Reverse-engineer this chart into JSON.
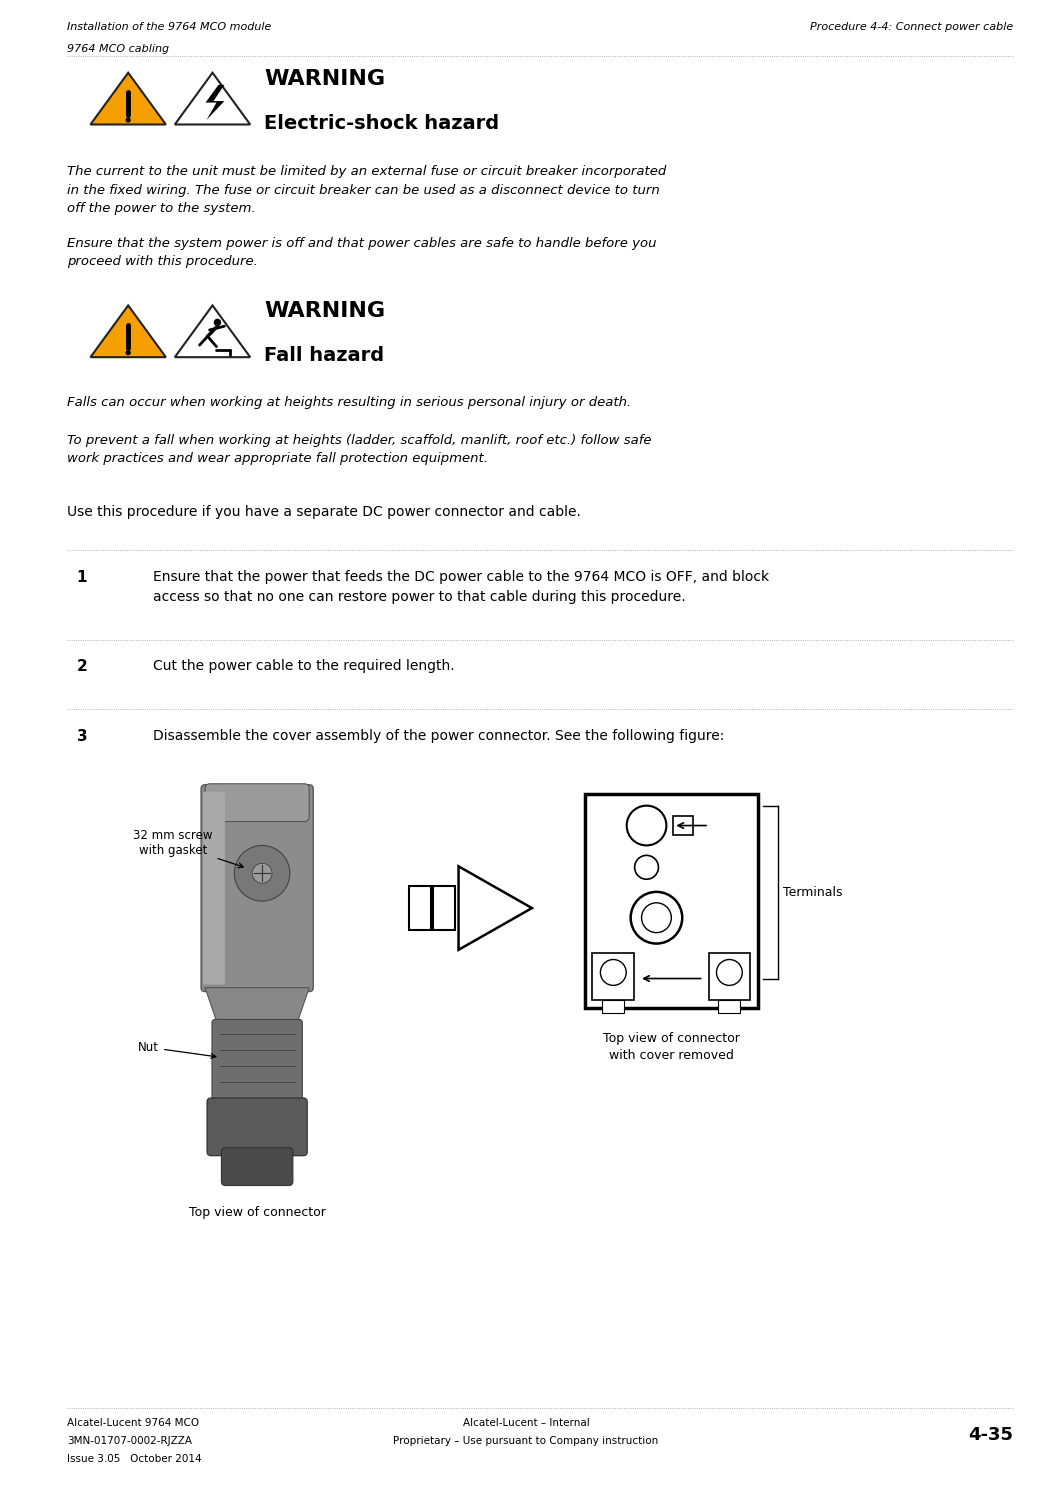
{
  "page_width": 10.52,
  "page_height": 14.87,
  "bg_color": "#ffffff",
  "header_left_line1": "Installation of the 9764 MCO module",
  "header_left_line2": "9764 MCO cabling",
  "header_right": "Procedure 4-4: Connect power cable",
  "warning1_title": "WARNING",
  "warning1_subtitle": "Electric-shock hazard",
  "warning1_body1": "The current to the unit must be limited by an external fuse or circuit breaker incorporated\nin the fixed wiring. The fuse or circuit breaker can be used as a disconnect device to turn\noff the power to the system.",
  "warning1_body2": "Ensure that the system power is off and that power cables are safe to handle before you\nproceed with this procedure.",
  "warning2_title": "WARNING",
  "warning2_subtitle": "Fall hazard",
  "warning2_body1": "Falls can occur when working at heights resulting in serious personal injury or death.",
  "warning2_body2": "To prevent a fall when working at heights (ladder, scaffold, manlift, roof etc.) follow safe\nwork practices and wear appropriate fall protection equipment.",
  "intro_text": "Use this procedure if you have a separate DC power connector and cable.",
  "step1_num": "1",
  "step1_text": "Ensure that the power that feeds the DC power cable to the 9764 MCO is OFF, and block\naccess so that no one can restore power to that cable during this procedure.",
  "step2_num": "2",
  "step2_text": "Cut the power cable to the required length.",
  "step3_num": "3",
  "step3_text": "Disassemble the cover assembly of the power connector. See the following figure:",
  "fig_label1": "32 mm screw\nwith gasket",
  "fig_label2": "Nut",
  "fig_label3": "Top view of connector",
  "fig_label4": "Top view of connector\nwith cover removed",
  "fig_label5": "Terminals",
  "footer_left1": "Alcatel-Lucent 9764 MCO",
  "footer_left2": "3MN-01707-0002-RJZZA",
  "footer_left3": "Issue 3.05   October 2014",
  "footer_center1": "Alcatel-Lucent – Internal",
  "footer_center2": "Proprietary – Use pursuant to Company instruction",
  "footer_right": "4-35",
  "text_color": "#000000"
}
